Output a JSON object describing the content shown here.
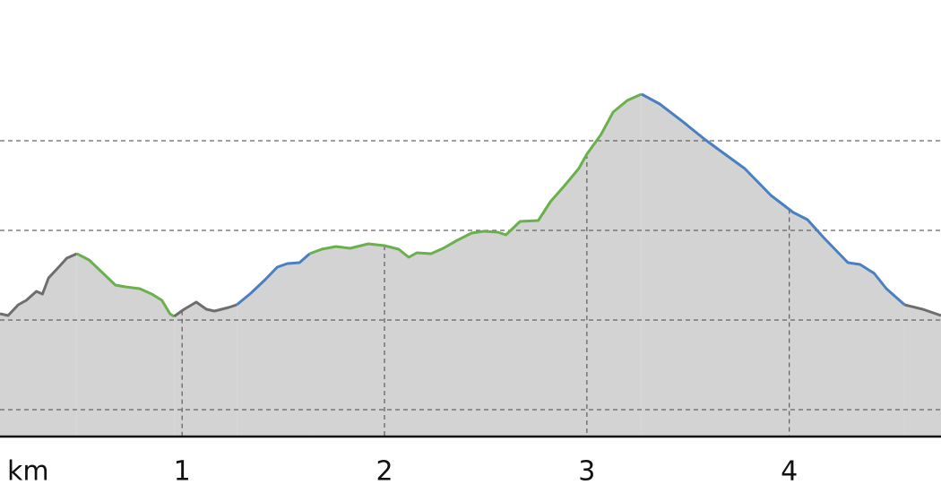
{
  "chart_data": {
    "type": "area",
    "x_label": "km",
    "xlim": [
      0.1,
      4.75
    ],
    "xticks": [
      1,
      2,
      3,
      4
    ],
    "ylim": [
      0,
      487
    ],
    "yticks": [
      30,
      130,
      230,
      330
    ],
    "grid": true,
    "fill_color": "#d3d3d3",
    "series": [
      {
        "color": "#6e6e6e",
        "x": [
          0.1,
          0.14,
          0.19,
          0.23,
          0.28,
          0.31,
          0.34,
          0.39,
          0.43,
          0.48
        ],
        "values": [
          137,
          135,
          147,
          152,
          162,
          159,
          177,
          189,
          199,
          204
        ]
      },
      {
        "color": "#6ab04c",
        "x": [
          0.48,
          0.54,
          0.61,
          0.67,
          0.72,
          0.79,
          0.85,
          0.9,
          0.94,
          0.96
        ],
        "values": [
          204,
          197,
          182,
          169,
          167,
          165,
          159,
          152,
          137,
          134
        ]
      },
      {
        "color": "#6e6e6e",
        "x": [
          0.96,
          1.01,
          1.07,
          1.12,
          1.16,
          1.23,
          1.27
        ],
        "values": [
          134,
          142,
          150,
          142,
          140,
          144,
          147
        ]
      },
      {
        "color": "#4a7fc1",
        "x": [
          1.27,
          1.34,
          1.41,
          1.47,
          1.52,
          1.58,
          1.63
        ],
        "values": [
          147,
          160,
          175,
          189,
          193,
          194,
          204
        ]
      },
      {
        "color": "#6ab04c",
        "x": [
          1.63,
          1.69,
          1.76,
          1.83,
          1.92,
          2.0,
          2.07,
          2.12,
          2.16,
          2.23,
          2.29,
          2.36,
          2.43,
          2.49,
          2.56,
          2.6,
          2.67,
          2.76,
          2.82,
          2.89,
          2.96,
          3.0,
          3.07,
          3.13,
          3.2,
          3.27
        ],
        "values": [
          204,
          209,
          212,
          210,
          215,
          213,
          209,
          200,
          205,
          204,
          210,
          219,
          227,
          229,
          228,
          225,
          240,
          241,
          262,
          280,
          299,
          315,
          337,
          362,
          375,
          382
        ]
      },
      {
        "color": "#4a7fc1",
        "x": [
          3.27,
          3.36,
          3.47,
          3.58,
          3.64,
          3.78,
          3.91,
          4.02,
          4.09,
          4.17,
          4.29,
          4.35,
          4.42,
          4.48,
          4.57
        ],
        "values": [
          382,
          371,
          352,
          332,
          322,
          299,
          269,
          250,
          242,
          222,
          194,
          192,
          182,
          165,
          147
        ]
      },
      {
        "color": "#6e6e6e",
        "x": [
          4.57,
          4.66,
          4.75
        ],
        "values": [
          147,
          142,
          135
        ]
      }
    ]
  }
}
